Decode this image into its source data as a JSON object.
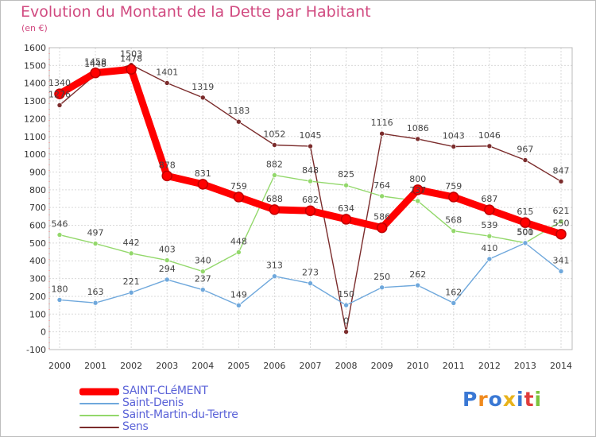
{
  "chart_data": {
    "type": "line",
    "title": "Evolution du Montant de la Dette par Habitant",
    "subtitle": "(en €)",
    "x": [
      "2000",
      "2001",
      "2002",
      "2003",
      "2004",
      "2005",
      "2006",
      "2007",
      "2008",
      "2009",
      "2010",
      "2011",
      "2012",
      "2013",
      "2014"
    ],
    "ylim": [
      -100,
      1600
    ],
    "yticks": [
      -100,
      0,
      100,
      200,
      300,
      400,
      500,
      600,
      700,
      800,
      900,
      1000,
      1100,
      1200,
      1300,
      1400,
      1500,
      1600
    ],
    "grid": true,
    "legend_position": "bottom-left",
    "series": [
      {
        "name": "SAINT-CLéMENT",
        "color": "#ff0000",
        "values": [
          1340,
          1458,
          1478,
          878,
          831,
          759,
          688,
          682,
          634,
          586,
          800,
          759,
          687,
          615,
          550
        ]
      },
      {
        "name": "Saint-Denis",
        "color": "#6fa8dc",
        "values": [
          180,
          163,
          221,
          294,
          237,
          149,
          313,
          273,
          150,
          250,
          262,
          162,
          410,
          500,
          341
        ]
      },
      {
        "name": "Saint-Martin-du-Tertre",
        "color": "#93d86b",
        "values": [
          546,
          497,
          442,
          403,
          340,
          448,
          882,
          848,
          825,
          764,
          737,
          568,
          539,
          501,
          621
        ]
      },
      {
        "name": "Sens",
        "color": "#7b2c2c",
        "values": [
          1276,
          1448,
          1503,
          1401,
          1319,
          1183,
          1052,
          1045,
          0,
          1116,
          1086,
          1043,
          1046,
          967,
          847
        ]
      }
    ]
  },
  "branding": {
    "logo": "Proxiti",
    "logo_colors": [
      "#3a78d4",
      "#f08a1e",
      "#3a78d4",
      "#e8b21a",
      "#3a78d4",
      "#e03c3c",
      "#7cc33e"
    ]
  }
}
